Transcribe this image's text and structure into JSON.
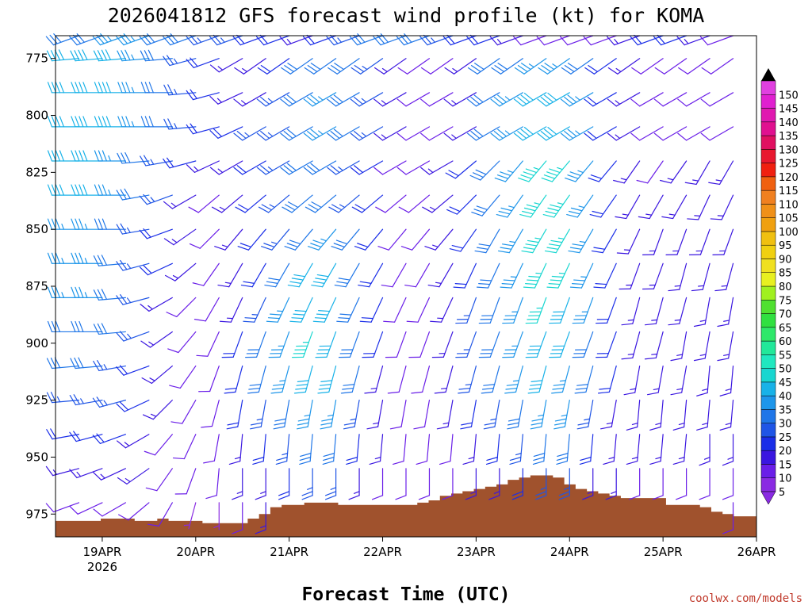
{
  "chart_data": {
    "type": "wind-barb-profile",
    "title": "2026041812 GFS forecast wind profile (kt) for KOMA",
    "xlabel": "Forecast Time (UTC)",
    "credit": "coolwx.com/models",
    "x_start_hours_after_19apr00z": -12,
    "x_end_hours_after_19apr00z": 168,
    "x_tick_labels": [
      "19APR",
      "20APR",
      "21APR",
      "22APR",
      "23APR",
      "24APR",
      "25APR",
      "26APR"
    ],
    "x_tick_sublabel": "2026",
    "y_label_unit": "hPa",
    "y_range": [
      765,
      985
    ],
    "y_ticks": [
      "775",
      "800",
      "825",
      "850",
      "875",
      "900",
      "925",
      "950",
      "975"
    ],
    "levels_hpa": [
      765,
      775,
      790,
      805,
      820,
      835,
      850,
      865,
      880,
      895,
      910,
      925,
      940,
      955,
      970
    ],
    "colorbar": {
      "unit": "kt",
      "values": [
        "5",
        "10",
        "15",
        "20",
        "25",
        "30",
        "35",
        "40",
        "45",
        "50",
        "55",
        "60",
        "65",
        "70",
        "75",
        "80",
        "85",
        "90",
        "95",
        "100",
        "105",
        "110",
        "115",
        "120",
        "125",
        "130",
        "135",
        "140",
        "145",
        "150"
      ],
      "colors": [
        "#8a2be2",
        "#6a1ee8",
        "#3a16e0",
        "#1a2ee8",
        "#1f55e6",
        "#1f76e8",
        "#1e96ea",
        "#18b2e8",
        "#18d6d0",
        "#20e8c0",
        "#22e89a",
        "#2ee86a",
        "#30e040",
        "#50e030",
        "#a0f020",
        "#e8f020",
        "#f0e020",
        "#f0d010",
        "#f0c010",
        "#f0a010",
        "#f09018",
        "#f08020",
        "#f06010",
        "#f02010",
        "#e81830",
        "#e01060",
        "#e01090",
        "#e018b0",
        "#e020d0",
        "#e040e0"
      ]
    },
    "terrain": {
      "color": "#a0522d",
      "pressure_hpa": [
        978,
        978,
        978,
        978,
        977,
        977,
        977,
        978,
        978,
        977,
        978,
        978,
        978,
        979,
        979,
        979,
        979,
        977,
        975,
        972,
        971,
        971,
        970,
        970,
        970,
        971,
        971,
        971,
        971,
        971,
        971,
        971,
        970,
        969,
        967,
        966,
        965,
        964,
        963,
        962,
        960,
        959,
        958,
        958,
        959,
        962,
        964,
        965,
        966,
        967,
        968,
        968,
        968,
        968,
        971,
        971,
        971,
        972,
        974,
        975,
        976,
        976
      ]
    },
    "wind_profile": {
      "step_hours": 6,
      "first_hour": -12,
      "levels": [
        {
          "p": 765,
          "dirs": [
            250,
            250,
            250,
            250,
            250,
            250,
            250,
            250,
            250,
            250,
            250,
            250,
            250,
            250,
            250,
            250,
            250,
            250,
            250,
            250,
            250,
            250,
            250,
            250,
            250,
            250,
            250,
            250,
            250,
            250,
            250
          ],
          "spd": [
            30,
            30,
            30,
            35,
            35,
            30,
            30,
            25,
            25,
            20,
            20,
            15,
            20,
            25,
            30,
            30,
            30,
            25,
            20,
            20,
            15,
            10,
            10,
            10,
            10,
            15,
            20,
            20,
            15,
            10,
            10
          ]
        },
        {
          "p": 775,
          "dirs": [
            265,
            265,
            265,
            265,
            265,
            265,
            255,
            250,
            240,
            235,
            235,
            235,
            235,
            235,
            235,
            235,
            235,
            235,
            235,
            235,
            235,
            235,
            235,
            235,
            235,
            235,
            235,
            235,
            235,
            235,
            235
          ],
          "spd": [
            40,
            40,
            40,
            40,
            35,
            30,
            25,
            20,
            15,
            15,
            20,
            30,
            30,
            30,
            25,
            15,
            10,
            10,
            15,
            30,
            30,
            35,
            35,
            30,
            20,
            15,
            10,
            10,
            10,
            10,
            10
          ]
        },
        {
          "p": 790,
          "dirs": [
            270,
            270,
            270,
            270,
            270,
            270,
            265,
            255,
            245,
            240,
            240,
            240,
            240,
            240,
            240,
            240,
            240,
            240,
            240,
            240,
            240,
            240,
            240,
            240,
            240,
            240,
            240,
            240,
            240,
            240,
            240
          ],
          "spd": [
            40,
            40,
            40,
            40,
            35,
            30,
            25,
            20,
            15,
            15,
            25,
            30,
            35,
            30,
            25,
            15,
            10,
            10,
            15,
            30,
            35,
            40,
            40,
            35,
            20,
            15,
            10,
            10,
            10,
            10,
            10
          ]
        },
        {
          "p": 805,
          "dirs": [
            270,
            270,
            270,
            270,
            270,
            270,
            265,
            255,
            245,
            240,
            240,
            240,
            240,
            240,
            240,
            240,
            240,
            240,
            240,
            240,
            240,
            240,
            240,
            240,
            240,
            240,
            240,
            240,
            240,
            240,
            240
          ],
          "spd": [
            40,
            40,
            40,
            40,
            35,
            30,
            25,
            20,
            20,
            25,
            25,
            30,
            35,
            30,
            25,
            15,
            10,
            10,
            15,
            30,
            35,
            40,
            40,
            35,
            20,
            15,
            10,
            10,
            10,
            10,
            10
          ]
        },
        {
          "p": 820,
          "dirs": [
            270,
            270,
            270,
            270,
            265,
            260,
            255,
            245,
            240,
            240,
            240,
            240,
            240,
            240,
            240,
            240,
            240,
            240,
            230,
            225,
            220,
            220,
            220,
            220,
            220,
            215,
            215,
            215,
            210,
            210,
            210
          ],
          "spd": [
            40,
            40,
            40,
            35,
            30,
            25,
            20,
            15,
            15,
            20,
            25,
            30,
            30,
            25,
            20,
            10,
            10,
            15,
            20,
            30,
            35,
            45,
            45,
            35,
            20,
            15,
            10,
            15,
            15,
            15,
            15
          ]
        },
        {
          "p": 835,
          "dirs": [
            270,
            270,
            270,
            270,
            260,
            250,
            240,
            230,
            230,
            230,
            230,
            230,
            230,
            230,
            230,
            230,
            230,
            230,
            225,
            220,
            215,
            215,
            215,
            215,
            215,
            210,
            210,
            210,
            205,
            205,
            205
          ],
          "spd": [
            40,
            40,
            40,
            35,
            30,
            25,
            15,
            10,
            15,
            20,
            25,
            30,
            30,
            25,
            20,
            10,
            10,
            15,
            20,
            30,
            35,
            45,
            45,
            35,
            20,
            15,
            15,
            15,
            15,
            15,
            15
          ]
        },
        {
          "p": 850,
          "dirs": [
            270,
            270,
            270,
            270,
            260,
            250,
            235,
            225,
            220,
            220,
            220,
            220,
            220,
            220,
            220,
            220,
            220,
            220,
            215,
            210,
            210,
            210,
            210,
            210,
            210,
            205,
            200,
            200,
            200,
            200,
            200
          ],
          "spd": [
            35,
            35,
            35,
            30,
            25,
            20,
            15,
            10,
            15,
            20,
            25,
            30,
            35,
            30,
            20,
            10,
            10,
            15,
            20,
            30,
            35,
            45,
            45,
            35,
            20,
            15,
            15,
            15,
            15,
            15,
            15
          ]
        },
        {
          "p": 865,
          "dirs": [
            270,
            270,
            270,
            265,
            255,
            245,
            230,
            215,
            210,
            210,
            210,
            210,
            210,
            210,
            210,
            210,
            210,
            210,
            205,
            205,
            205,
            205,
            205,
            205,
            205,
            200,
            200,
            195,
            195,
            195,
            195
          ],
          "spd": [
            35,
            35,
            35,
            30,
            25,
            20,
            15,
            10,
            15,
            20,
            30,
            40,
            40,
            30,
            20,
            10,
            10,
            15,
            20,
            30,
            35,
            45,
            45,
            35,
            20,
            15,
            15,
            15,
            15,
            15,
            15
          ]
        },
        {
          "p": 880,
          "dirs": [
            270,
            270,
            270,
            265,
            255,
            240,
            225,
            210,
            205,
            205,
            205,
            205,
            205,
            205,
            205,
            205,
            205,
            205,
            200,
            200,
            200,
            200,
            200,
            200,
            200,
            195,
            195,
            195,
            190,
            190,
            190
          ],
          "spd": [
            35,
            35,
            35,
            30,
            25,
            15,
            10,
            10,
            15,
            25,
            35,
            40,
            40,
            30,
            20,
            10,
            10,
            15,
            25,
            30,
            35,
            45,
            40,
            35,
            20,
            15,
            15,
            15,
            15,
            15,
            15
          ]
        },
        {
          "p": 895,
          "dirs": [
            270,
            270,
            270,
            265,
            250,
            235,
            220,
            205,
            200,
            200,
            200,
            200,
            200,
            200,
            200,
            200,
            200,
            200,
            200,
            200,
            200,
            200,
            200,
            200,
            200,
            195,
            195,
            190,
            190,
            190,
            190
          ],
          "spd": [
            30,
            30,
            30,
            30,
            25,
            15,
            10,
            10,
            20,
            30,
            35,
            45,
            40,
            30,
            20,
            10,
            10,
            15,
            25,
            30,
            35,
            40,
            40,
            30,
            20,
            15,
            15,
            15,
            15,
            15,
            15
          ]
        },
        {
          "p": 910,
          "dirs": [
            265,
            265,
            265,
            260,
            250,
            230,
            215,
            200,
            195,
            195,
            195,
            195,
            195,
            195,
            195,
            195,
            195,
            195,
            195,
            195,
            195,
            195,
            195,
            195,
            195,
            190,
            190,
            190,
            185,
            185,
            185
          ],
          "spd": [
            30,
            30,
            30,
            25,
            20,
            15,
            10,
            10,
            20,
            30,
            35,
            40,
            40,
            30,
            15,
            10,
            10,
            15,
            25,
            30,
            35,
            40,
            35,
            30,
            20,
            15,
            15,
            15,
            15,
            15,
            15
          ]
        },
        {
          "p": 925,
          "dirs": [
            265,
            265,
            260,
            255,
            245,
            225,
            210,
            195,
            190,
            190,
            190,
            190,
            190,
            190,
            190,
            190,
            190,
            190,
            190,
            190,
            190,
            190,
            190,
            190,
            190,
            185,
            185,
            185,
            185,
            185,
            185
          ],
          "spd": [
            25,
            25,
            25,
            25,
            20,
            15,
            10,
            10,
            20,
            25,
            30,
            35,
            35,
            25,
            15,
            10,
            10,
            15,
            20,
            25,
            30,
            35,
            35,
            25,
            15,
            15,
            15,
            15,
            15,
            15,
            15
          ]
        },
        {
          "p": 940,
          "dirs": [
            260,
            260,
            255,
            250,
            240,
            220,
            205,
            190,
            185,
            185,
            185,
            185,
            185,
            185,
            185,
            185,
            185,
            185,
            185,
            185,
            185,
            185,
            185,
            185,
            185,
            185,
            185,
            185,
            180,
            180,
            180
          ],
          "spd": [
            20,
            20,
            20,
            20,
            15,
            10,
            10,
            10,
            15,
            20,
            25,
            30,
            30,
            20,
            15,
            10,
            10,
            10,
            15,
            20,
            25,
            30,
            30,
            20,
            15,
            15,
            15,
            15,
            15,
            15,
            15
          ]
        },
        {
          "p": 955,
          "dirs": [
            255,
            255,
            250,
            245,
            235,
            215,
            200,
            185,
            180,
            180,
            180,
            180,
            180,
            180,
            180,
            180,
            180,
            180,
            180,
            180,
            180,
            180,
            180,
            180,
            180,
            180,
            180,
            180,
            180,
            180,
            180
          ],
          "spd": [
            15,
            15,
            15,
            15,
            15,
            10,
            10,
            10,
            15,
            15,
            20,
            25,
            25,
            15,
            10,
            10,
            10,
            10,
            15,
            15,
            20,
            25,
            25,
            15,
            15,
            10,
            10,
            10,
            10,
            10,
            10
          ]
        },
        {
          "p": 970,
          "dirs": [
            250,
            250,
            245,
            240,
            230,
            210,
            195,
            180,
            180,
            180,
            180,
            180,
            180,
            180,
            180,
            180,
            180,
            180,
            180,
            180,
            180,
            180,
            180,
            180,
            180,
            180,
            180,
            180,
            180,
            180,
            180
          ],
          "spd": [
            10,
            10,
            10,
            10,
            10,
            10,
            5,
            5,
            10,
            15,
            15,
            20,
            20,
            10,
            10,
            5,
            5,
            10,
            10,
            10,
            15,
            20,
            20,
            10,
            10,
            10,
            10,
            10,
            10,
            10,
            10
          ]
        }
      ]
    }
  }
}
